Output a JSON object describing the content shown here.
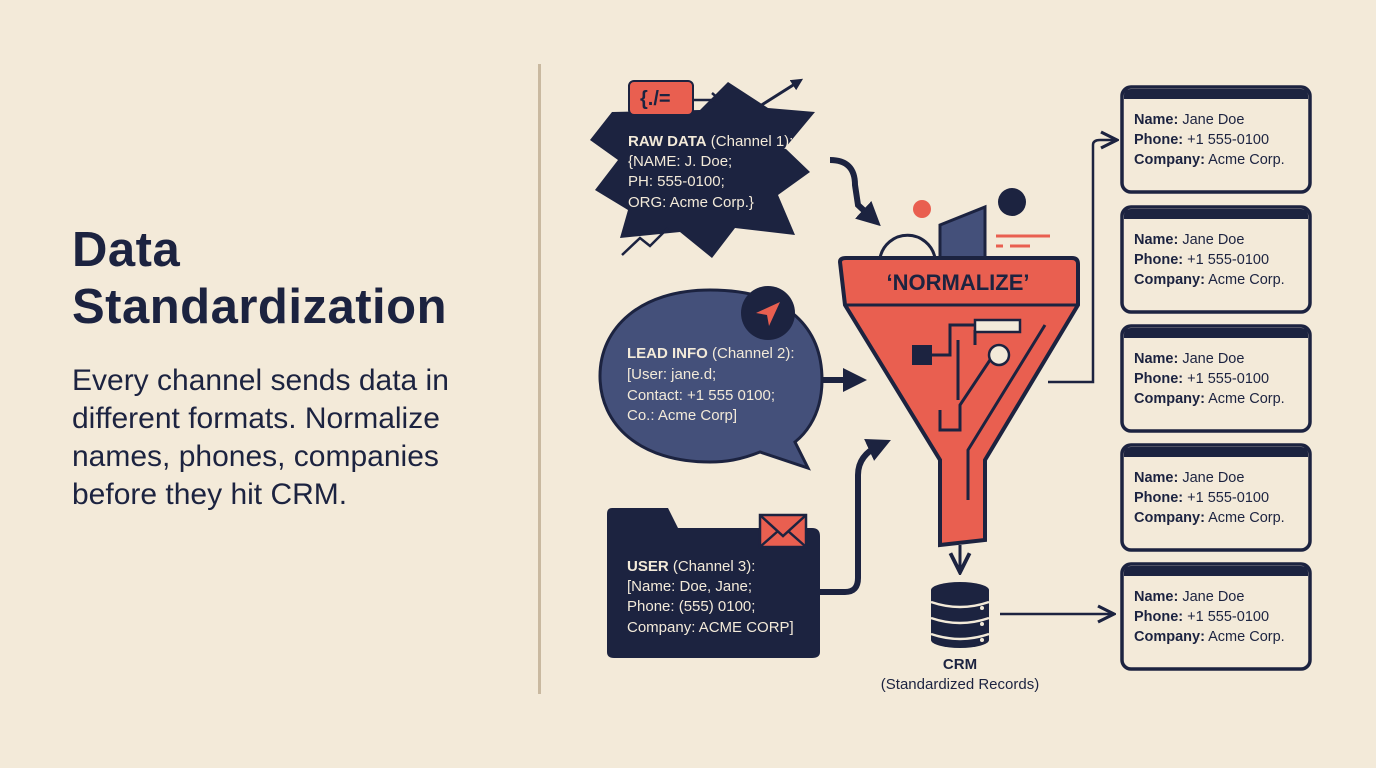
{
  "left": {
    "title_line1": "Data",
    "title_line2": "Standardization",
    "description": "Every channel sends data in different formats. Normalize names, phones, companies before they hit CRM."
  },
  "colors": {
    "background": "#f3ead9",
    "navy": "#1c2340",
    "coral": "#e95f50",
    "slate": "#44507a"
  },
  "channels": [
    {
      "label": "RAW DATA",
      "channel": "(Channel 1):",
      "lines": [
        "{NAME: J. Doe;",
        "PH: 555-0100;",
        "ORG: Acme Corp.}"
      ],
      "icon": "code-icon",
      "icon_text": "{./=",
      "shape": "starburst"
    },
    {
      "label": "LEAD INFO",
      "channel": "(Channel 2):",
      "lines": [
        "[User: jane.d;",
        "Contact: +1 555 0100;",
        "Co.: Acme Corp]"
      ],
      "icon": "send-icon",
      "shape": "speech-bubble"
    },
    {
      "label": "USER",
      "channel": "(Channel 3):",
      "lines": [
        "[Name: Doe, Jane;",
        "Phone: (555) 0100;",
        "Company: ACME CORP]"
      ],
      "icon": "mail-icon",
      "shape": "folder"
    }
  ],
  "funnel": {
    "label": "‘NORMALIZE’"
  },
  "crm": {
    "title": "CRM",
    "subtitle": "(Standardized Records)",
    "icon": "database-icon"
  },
  "records": [
    {
      "name_label": "Name:",
      "name": "Jane Doe",
      "phone_label": "Phone:",
      "phone": "+1 555-0100",
      "company_label": "Company:",
      "company": "Acme Corp."
    },
    {
      "name_label": "Name:",
      "name": "Jane Doe",
      "phone_label": "Phone:",
      "phone": "+1 555-0100",
      "company_label": "Company:",
      "company": "Acme Corp."
    },
    {
      "name_label": "Name:",
      "name": "Jane Doe",
      "phone_label": "Phone:",
      "phone": "+1 555-0100",
      "company_label": "Company:",
      "company": "Acme Corp."
    },
    {
      "name_label": "Name:",
      "name": "Jane Doe",
      "phone_label": "Phone:",
      "phone": "+1 555-0100",
      "company_label": "Company:",
      "company": "Acme Corp."
    },
    {
      "name_label": "Name:",
      "name": "Jane Doe",
      "phone_label": "Phone:",
      "phone": "+1 555-0100",
      "company_label": "Company:",
      "company": "Acme Corp."
    }
  ]
}
